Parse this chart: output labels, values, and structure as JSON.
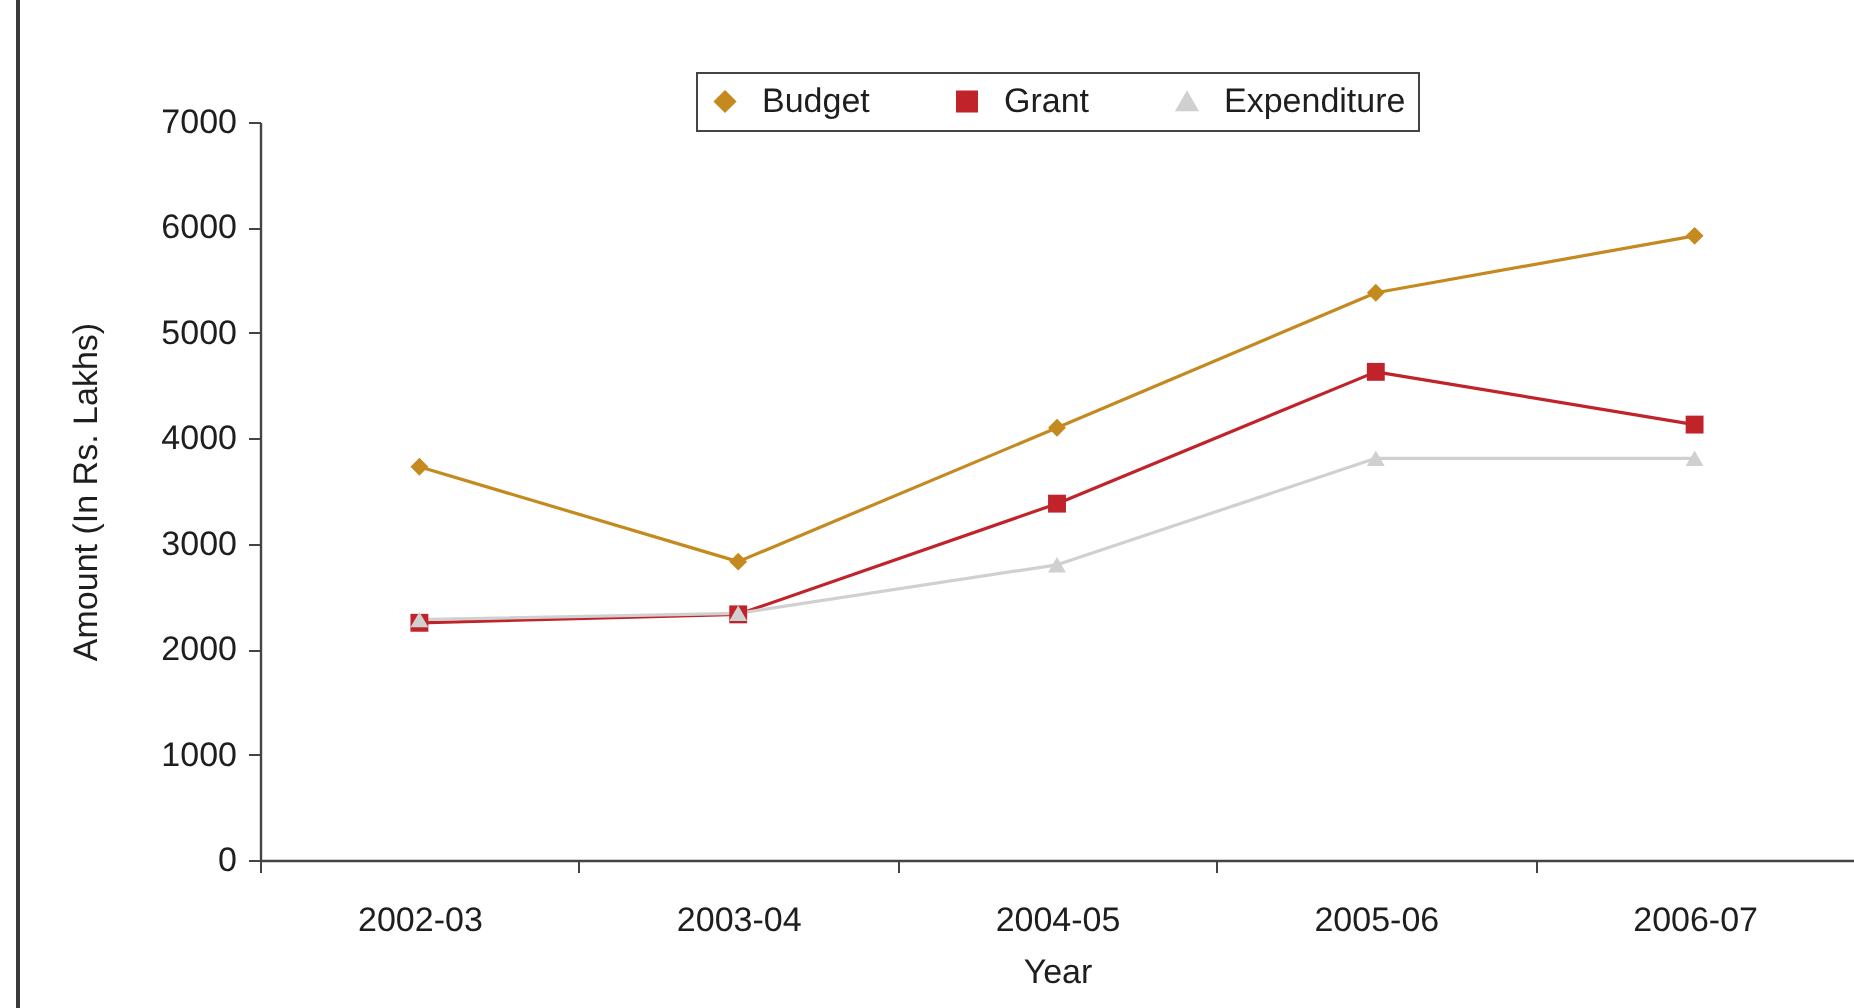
{
  "chart_data": {
    "type": "line",
    "xlabel": "Year",
    "ylabel": "Amount (In Rs. Lakhs)",
    "categories": [
      "2002-03",
      "2003-04",
      "2004-05",
      "2005-06",
      "2006-07"
    ],
    "series": [
      {
        "name": "Budget",
        "color": "#c48a1f",
        "marker": "diamond",
        "values": [
          3730,
          2830,
          4100,
          5380,
          5920
        ]
      },
      {
        "name": "Grant",
        "color": "#c1232b",
        "marker": "square",
        "values": [
          2250,
          2330,
          3380,
          4630,
          4130
        ]
      },
      {
        "name": "Expenditure",
        "color": "#d0d0d0",
        "marker": "triangle",
        "values": [
          2280,
          2340,
          2800,
          3810,
          3810
        ]
      }
    ],
    "ylim": [
      0,
      7000
    ],
    "yticks": [
      0,
      1000,
      2000,
      3000,
      4000,
      5000,
      6000,
      7000
    ],
    "grid": false,
    "legend": "top",
    "line_style": "solid"
  }
}
